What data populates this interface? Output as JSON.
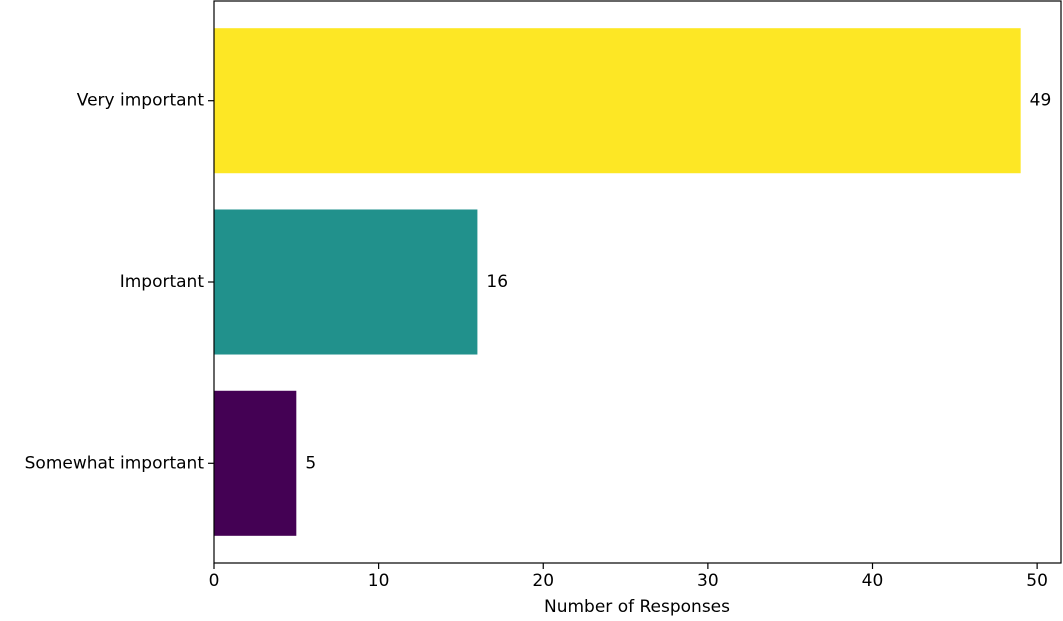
{
  "chart_data": {
    "type": "barh",
    "x_label": "Number of Responses",
    "categories": [
      "Very important",
      "Important",
      "Somewhat important"
    ],
    "values": [
      49,
      16,
      5
    ],
    "colors": [
      "#fde725",
      "#21918c",
      "#440154"
    ],
    "xlim": [
      0,
      51.45
    ],
    "xticks": [
      0,
      10,
      20,
      30,
      40,
      50
    ],
    "grid": false
  }
}
